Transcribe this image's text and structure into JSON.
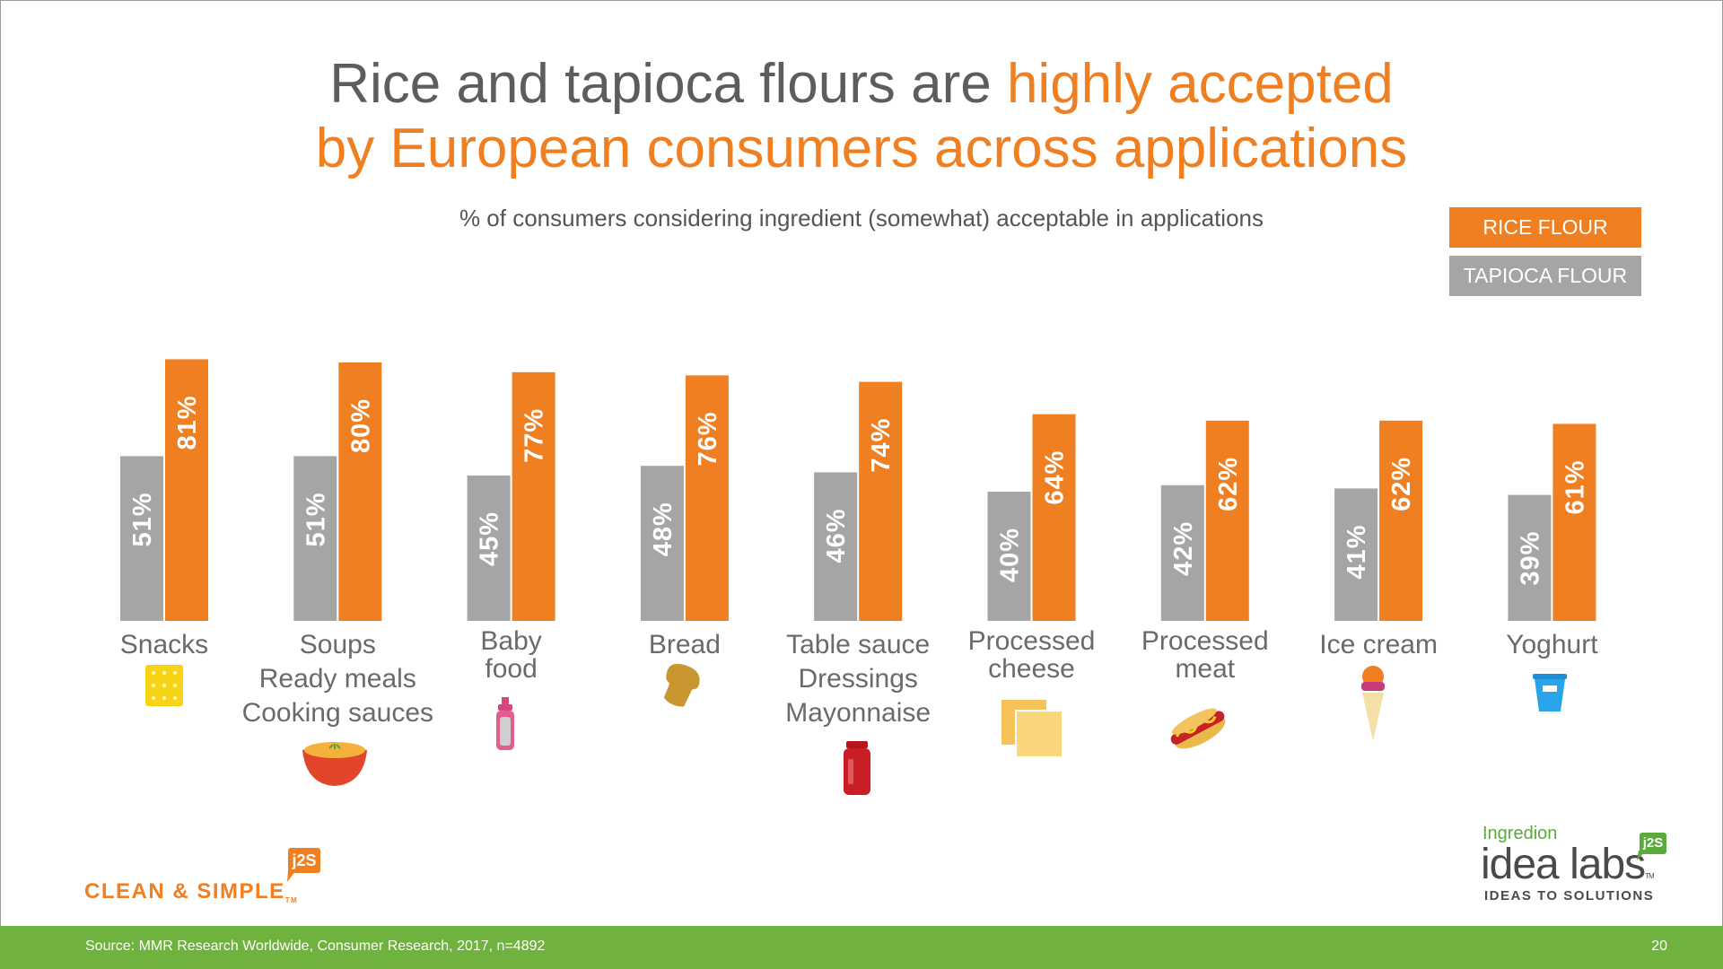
{
  "title": {
    "line1_plain": "Rice and tapioca flours are ",
    "line1_accent": "highly accepted",
    "line2_accent": "by European consumers across applications"
  },
  "colors": {
    "rice": "#f07f22",
    "tapioca": "#a5a5a5",
    "footer": "#6fb23d"
  },
  "chart_data": {
    "type": "bar",
    "title": "Rice and tapioca flours are highly accepted by European consumers across applications",
    "subtitle": "% of consumers considering ingredient (somewhat) acceptable in applications",
    "categories": [
      [
        "Snacks"
      ],
      [
        "Soups",
        "Ready meals",
        "Cooking sauces"
      ],
      [
        "Baby",
        "food"
      ],
      [
        "Bread"
      ],
      [
        "Table sauce",
        "Dressings",
        "Mayonnaise"
      ],
      [
        "Processed",
        "cheese"
      ],
      [
        "Processed",
        "meat"
      ],
      [
        "Ice cream"
      ],
      [
        "Yoghurt"
      ]
    ],
    "series": [
      {
        "name": "TAPIOCA FLOUR",
        "color": "#a5a5a5",
        "values": [
          51,
          51,
          45,
          48,
          46,
          40,
          42,
          41,
          39
        ]
      },
      {
        "name": "RICE FLOUR",
        "color": "#f07f22",
        "values": [
          81,
          80,
          77,
          76,
          74,
          64,
          62,
          62,
          61
        ]
      }
    ],
    "value_suffix": "%",
    "legend_position": "top-right",
    "ylim": [
      0,
      100
    ],
    "grid": false
  },
  "icons": [
    "cracker-icon",
    "soup-bowl-icon",
    "baby-bottle-icon",
    "bread-icon",
    "sauce-jar-icon",
    "cheese-slices-icon",
    "hot-dog-icon",
    "ice-cream-cone-icon",
    "yoghurt-cup-icon"
  ],
  "branding": {
    "left_name": "CLEAN & SIMPLE",
    "left_tm": "TM",
    "badge": "j2S",
    "right_small": "Ingredion",
    "right_big": "idea labs",
    "right_tm": "TM",
    "right_tag": "IDEAS TO SOLUTIONS"
  },
  "footer": {
    "source": "Source: MMR Research Worldwide, Consumer Research, 2017, n=4892",
    "page": "20"
  }
}
